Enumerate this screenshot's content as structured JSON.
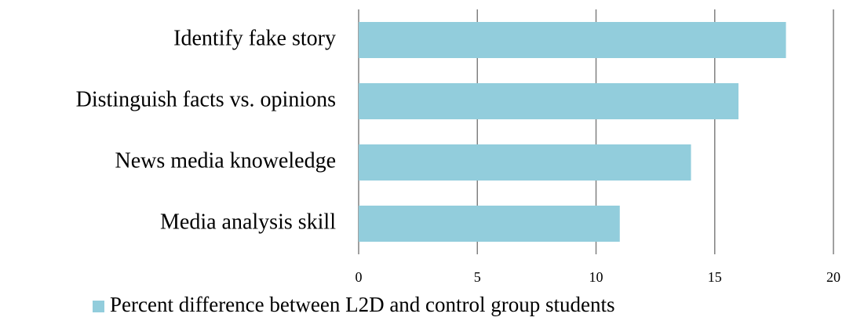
{
  "chart_data": {
    "type": "bar",
    "orientation": "horizontal",
    "categories": [
      "Identify fake story",
      "Distinguish facts vs. opinions",
      "News media knoweledge",
      "Media analysis skill"
    ],
    "series": [
      {
        "name": "Percent difference between L2D and control group students",
        "color": "#92cddc",
        "values": [
          18,
          16,
          14,
          11
        ]
      }
    ],
    "xlim": [
      0,
      20
    ],
    "xticks": [
      0,
      5,
      10,
      15,
      20
    ],
    "grid": true,
    "legend": "bottom"
  }
}
